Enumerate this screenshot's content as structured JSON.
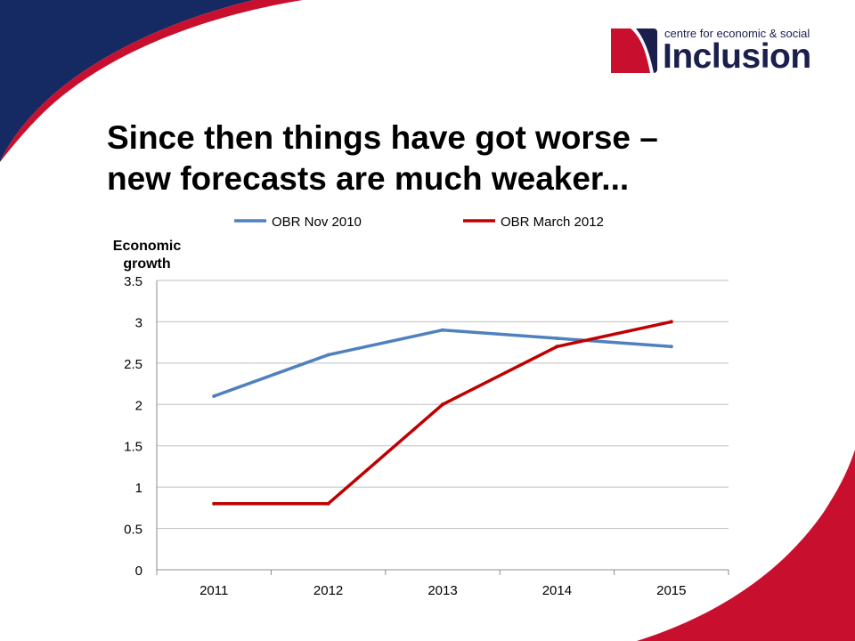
{
  "logo": {
    "small_text": "centre for economic & social",
    "big_text": "Inclusion"
  },
  "title": {
    "line1": "Since then things have got worse –",
    "line2": "new forecasts are much weaker..."
  },
  "colors": {
    "navy": "#152a63",
    "crimson": "#c8102e",
    "series_blue": "#4f81bd",
    "series_red": "#c00000",
    "grid": "#bfbfbf"
  },
  "chart_data": {
    "type": "line",
    "ylabel_lines": [
      "Economic",
      "growth"
    ],
    "xlabel": "",
    "categories": [
      "2011",
      "2012",
      "2013",
      "2014",
      "2015"
    ],
    "ylim": [
      0,
      3.5
    ],
    "yticks": [
      "0",
      "0.5",
      "1",
      "1.5",
      "2",
      "2.5",
      "3",
      "3.5"
    ],
    "grid": true,
    "legend_position": "top",
    "series": [
      {
        "name": "OBR Nov 2010",
        "color": "#4f81bd",
        "values": [
          2.1,
          2.6,
          2.9,
          2.8,
          2.7
        ]
      },
      {
        "name": "OBR March 2012",
        "color": "#c00000",
        "values": [
          0.8,
          0.8,
          2.0,
          2.7,
          3.0
        ]
      }
    ]
  }
}
